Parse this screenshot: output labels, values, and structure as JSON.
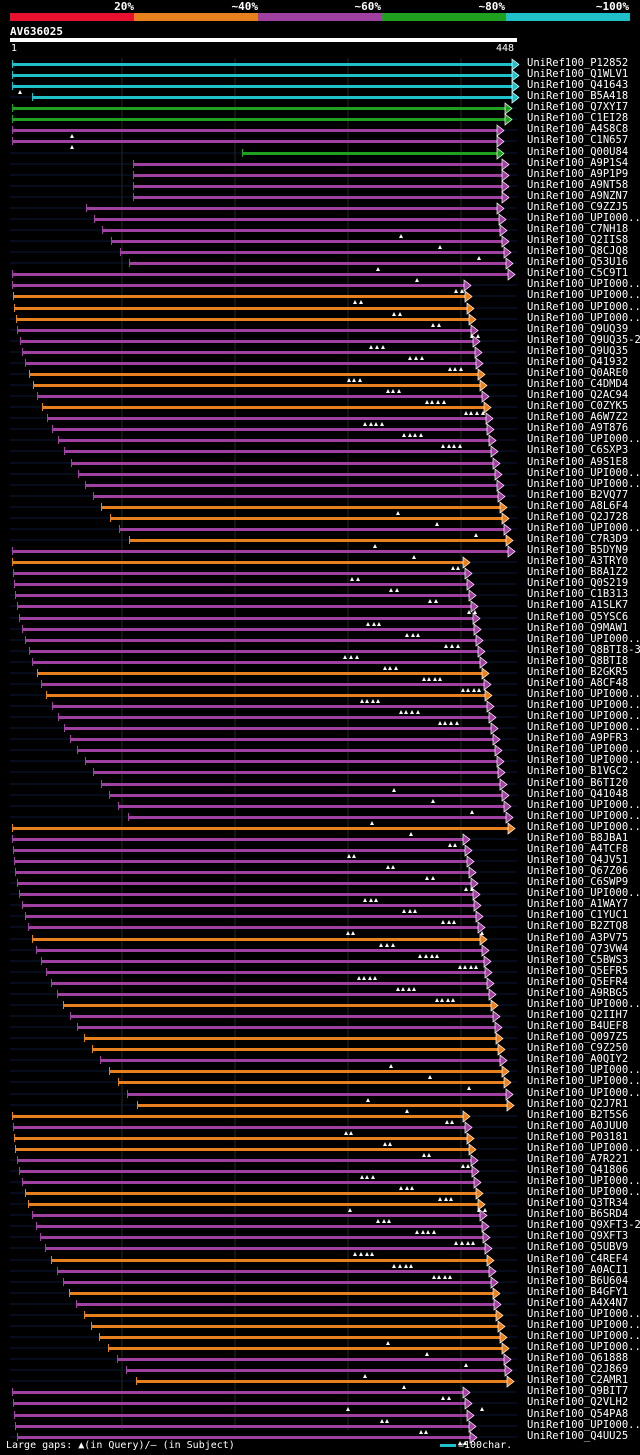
{
  "legend": {
    "labels": [
      "20%",
      "~40%",
      "~60%",
      "~80%",
      "~100%"
    ],
    "colors": [
      "#e8102e",
      "#e8801e",
      "#a040a0",
      "#20a020",
      "#20c0c8"
    ]
  },
  "query": {
    "name": "AV636025",
    "start": "1",
    "end": "448"
  },
  "hits": [
    {
      "name": "UniRef100_P12852",
      "bin": 4
    },
    {
      "name": "UniRef100_Q1WLV1",
      "bin": 4
    },
    {
      "name": "UniRef100_Q41643",
      "bin": 4
    },
    {
      "name": "UniRef100_B5A418",
      "bin": 4
    },
    {
      "name": "UniRef100_Q7XYI7",
      "bin": 3
    },
    {
      "name": "UniRef100_C1EI28",
      "bin": 3
    },
    {
      "name": "UniRef100_A4S8C8",
      "bin": 2
    },
    {
      "name": "UniRef100_C1N657",
      "bin": 2
    },
    {
      "name": "UniRef100_Q00U84",
      "bin": 3
    },
    {
      "name": "UniRef100_A9P1S4",
      "bin": 2
    },
    {
      "name": "UniRef100_A9P1P9",
      "bin": 2
    },
    {
      "name": "UniRef100_A9NT58",
      "bin": 2
    },
    {
      "name": "UniRef100_A9NZN7",
      "bin": 2
    },
    {
      "name": "UniRef100_C9ZZJ5",
      "bin": 2
    },
    {
      "name": "UniRef100_UPI000..",
      "bin": 2
    },
    {
      "name": "UniRef100_C7NH18",
      "bin": 2
    },
    {
      "name": "UniRef100_Q2IIS8",
      "bin": 2
    },
    {
      "name": "UniRef100_Q8CJQ8",
      "bin": 2
    },
    {
      "name": "UniRef100_Q53U16",
      "bin": 2
    },
    {
      "name": "UniRef100_C5C9T1",
      "bin": 2
    },
    {
      "name": "UniRef100_UPI000..",
      "bin": 2
    },
    {
      "name": "UniRef100_UPI000..",
      "bin": 1
    },
    {
      "name": "UniRef100_UPI000..",
      "bin": 1
    },
    {
      "name": "UniRef100_UPI000..",
      "bin": 1
    },
    {
      "name": "UniRef100_Q9UQ39",
      "bin": 2
    },
    {
      "name": "UniRef100_Q9UQ35-2",
      "bin": 2
    },
    {
      "name": "UniRef100_Q9UQ35",
      "bin": 2
    },
    {
      "name": "UniRef100_Q41932",
      "bin": 2
    },
    {
      "name": "UniRef100_Q0ARE0",
      "bin": 1
    },
    {
      "name": "UniRef100_C4DMD4",
      "bin": 1
    },
    {
      "name": "UniRef100_Q2AC94",
      "bin": 2
    },
    {
      "name": "UniRef100_C0ZYK5",
      "bin": 1
    },
    {
      "name": "UniRef100_A6W7Z2",
      "bin": 2
    },
    {
      "name": "UniRef100_A9T876",
      "bin": 2
    },
    {
      "name": "UniRef100_UPI000..",
      "bin": 2
    },
    {
      "name": "UniRef100_C6SXP3",
      "bin": 2
    },
    {
      "name": "UniRef100_A9S1E8",
      "bin": 2
    },
    {
      "name": "UniRef100_UPI000..",
      "bin": 2
    },
    {
      "name": "UniRef100_UPI000..",
      "bin": 2
    },
    {
      "name": "UniRef100_B2VQ77",
      "bin": 2
    },
    {
      "name": "UniRef100_A8L6F4",
      "bin": 1
    },
    {
      "name": "UniRef100_Q2J728",
      "bin": 1
    },
    {
      "name": "UniRef100_UPI000..",
      "bin": 2
    },
    {
      "name": "UniRef100_C7R3D9",
      "bin": 1
    },
    {
      "name": "UniRef100_B5DYN9",
      "bin": 2
    },
    {
      "name": "UniRef100_A3TRY0",
      "bin": 1
    },
    {
      "name": "UniRef100_B8A1Z2",
      "bin": 2
    },
    {
      "name": "UniRef100_Q0S219",
      "bin": 2
    },
    {
      "name": "UniRef100_C1B313",
      "bin": 2
    },
    {
      "name": "UniRef100_A1SLK7",
      "bin": 2
    },
    {
      "name": "UniRef100_Q5YSC6",
      "bin": 2
    },
    {
      "name": "UniRef100_Q9MAW1",
      "bin": 2
    },
    {
      "name": "UniRef100_UPI000..",
      "bin": 2
    },
    {
      "name": "UniRef100_Q8BTI8-3",
      "bin": 2
    },
    {
      "name": "UniRef100_Q8BTI8",
      "bin": 2
    },
    {
      "name": "UniRef100_B2GKR5",
      "bin": 1
    },
    {
      "name": "UniRef100_A8CF48",
      "bin": 2
    },
    {
      "name": "UniRef100_UPI000..",
      "bin": 1
    },
    {
      "name": "UniRef100_UPI000..",
      "bin": 2
    },
    {
      "name": "UniRef100_UPI000..",
      "bin": 2
    },
    {
      "name": "UniRef100_UPI000..",
      "bin": 2
    },
    {
      "name": "UniRef100_A9PFR3",
      "bin": 2
    },
    {
      "name": "UniRef100_UPI000..",
      "bin": 2
    },
    {
      "name": "UniRef100_UPI000..",
      "bin": 2
    },
    {
      "name": "UniRef100_B1VGC2",
      "bin": 2
    },
    {
      "name": "UniRef100_B6TI20",
      "bin": 2
    },
    {
      "name": "UniRef100_Q41048",
      "bin": 2
    },
    {
      "name": "UniRef100_UPI000..",
      "bin": 2
    },
    {
      "name": "UniRef100_UPI000..",
      "bin": 2
    },
    {
      "name": "UniRef100_UPI000..",
      "bin": 1
    },
    {
      "name": "UniRef100_B8JBA1",
      "bin": 2
    },
    {
      "name": "UniRef100_A4TCF8",
      "bin": 2
    },
    {
      "name": "UniRef100_Q4JV51",
      "bin": 2
    },
    {
      "name": "UniRef100_Q67Z06",
      "bin": 2
    },
    {
      "name": "UniRef100_C6SWP9",
      "bin": 2
    },
    {
      "name": "UniRef100_UPI000..",
      "bin": 2
    },
    {
      "name": "UniRef100_A1WAY7",
      "bin": 2
    },
    {
      "name": "UniRef100_C1YUC1",
      "bin": 2
    },
    {
      "name": "UniRef100_B2ZTQ8",
      "bin": 2
    },
    {
      "name": "UniRef100_A3PV75",
      "bin": 1
    },
    {
      "name": "UniRef100_Q73VW4",
      "bin": 2
    },
    {
      "name": "UniRef100_C5BWS3",
      "bin": 2
    },
    {
      "name": "UniRef100_Q5EFR5",
      "bin": 2
    },
    {
      "name": "UniRef100_Q5EFR4",
      "bin": 2
    },
    {
      "name": "UniRef100_A9RBG5",
      "bin": 2
    },
    {
      "name": "UniRef100_UPI000..",
      "bin": 1
    },
    {
      "name": "UniRef100_Q2IIH7",
      "bin": 2
    },
    {
      "name": "UniRef100_B4UEF8",
      "bin": 2
    },
    {
      "name": "UniRef100_Q097Z5",
      "bin": 1
    },
    {
      "name": "UniRef100_C9Z250",
      "bin": 1
    },
    {
      "name": "UniRef100_A0QIY2",
      "bin": 2
    },
    {
      "name": "UniRef100_UPI000..",
      "bin": 1
    },
    {
      "name": "UniRef100_UPI000..",
      "bin": 1
    },
    {
      "name": "UniRef100_UPI000..",
      "bin": 2
    },
    {
      "name": "UniRef100_Q2J7R1",
      "bin": 1
    },
    {
      "name": "UniRef100_B2T5S6",
      "bin": 1
    },
    {
      "name": "UniRef100_A0JUU0",
      "bin": 2
    },
    {
      "name": "UniRef100_P03181",
      "bin": 1
    },
    {
      "name": "UniRef100_UPI000..",
      "bin": 1
    },
    {
      "name": "UniRef100_A7R221",
      "bin": 2
    },
    {
      "name": "UniRef100_Q41806",
      "bin": 2
    },
    {
      "name": "UniRef100_UPI000..",
      "bin": 2
    },
    {
      "name": "UniRef100_UPI000..",
      "bin": 1
    },
    {
      "name": "UniRef100_Q3TR34",
      "bin": 1
    },
    {
      "name": "UniRef100_B6SRD4",
      "bin": 2
    },
    {
      "name": "UniRef100_Q9XFT3-2",
      "bin": 2
    },
    {
      "name": "UniRef100_Q9XFT3",
      "bin": 2
    },
    {
      "name": "UniRef100_Q5UBV9",
      "bin": 2
    },
    {
      "name": "UniRef100_C4REF4",
      "bin": 1
    },
    {
      "name": "UniRef100_A0ACI1",
      "bin": 2
    },
    {
      "name": "UniRef100_B6U604",
      "bin": 2
    },
    {
      "name": "UniRef100_B4GFY1",
      "bin": 1
    },
    {
      "name": "UniRef100_A4X4N7",
      "bin": 2
    },
    {
      "name": "UniRef100_UPI000..",
      "bin": 1
    },
    {
      "name": "UniRef100_UPI000..",
      "bin": 1
    },
    {
      "name": "UniRef100_UPI000..",
      "bin": 1
    },
    {
      "name": "UniRef100_UPI000..",
      "bin": 1
    },
    {
      "name": "UniRef100_Q61888",
      "bin": 2
    },
    {
      "name": "UniRef100_Q2J869",
      "bin": 2
    },
    {
      "name": "UniRef100_C2AMR1",
      "bin": 1
    },
    {
      "name": "UniRef100_Q9BIT7",
      "bin": 2
    },
    {
      "name": "UniRef100_Q2VLH2",
      "bin": 2
    },
    {
      "name": "UniRef100_Q54PA8",
      "bin": 2
    },
    {
      "name": "UniRef100_UPI000..",
      "bin": 2
    },
    {
      "name": "UniRef100_Q4UU25",
      "bin": 2
    }
  ],
  "footer": {
    "gaps_prefix": "Large gaps: ",
    "query_gap_marker": "▲",
    "query_gap_text": "(in Query)/",
    "subject_gap_marker": "–",
    "subject_gap_text": " (in Subject)"
  },
  "scale": {
    "text": "=100char."
  }
}
